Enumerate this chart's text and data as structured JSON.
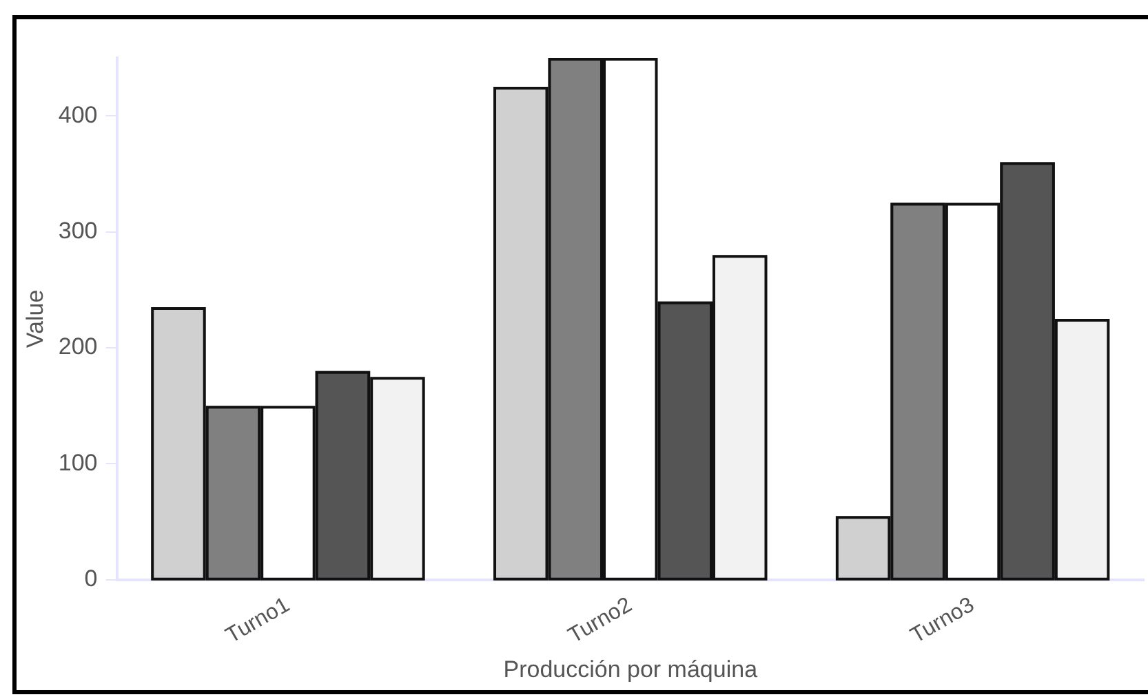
{
  "chart_data": {
    "type": "bar",
    "xlabel": "Producción por máquina",
    "ylabel": "Value",
    "categories": [
      "Turno1",
      "Turno2",
      "Turno3"
    ],
    "series": [
      {
        "color": "#d0d0d0",
        "values": [
          235,
          425,
          55
        ]
      },
      {
        "color": "#808080",
        "values": [
          150,
          450,
          325
        ]
      },
      {
        "color": "#ffffff",
        "values": [
          150,
          450,
          325
        ]
      },
      {
        "color": "#555555",
        "values": [
          180,
          240,
          360
        ]
      },
      {
        "color": "#f2f2f2",
        "values": [
          175,
          280,
          225
        ]
      }
    ],
    "ylim": [
      0,
      450
    ],
    "yticks": [
      0,
      100,
      200,
      300,
      400
    ],
    "grid": false,
    "legend": false
  }
}
